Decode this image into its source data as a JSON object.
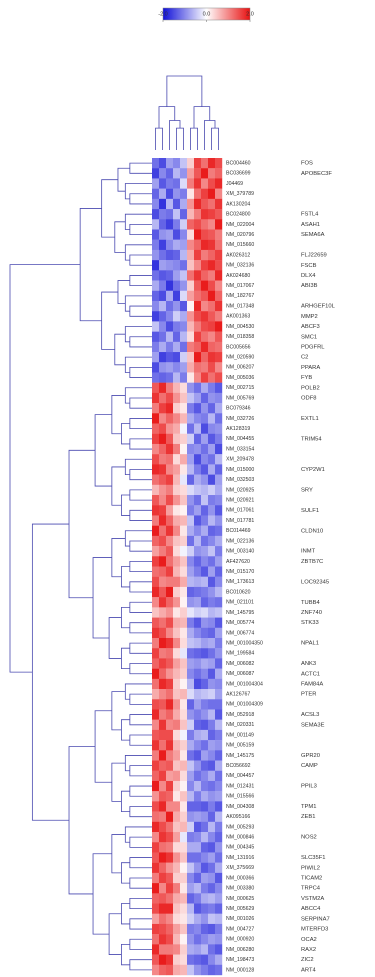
{
  "chart_data": {
    "type": "heatmap",
    "zlim": [
      -2,
      2
    ],
    "colorbar": {
      "colors": [
        "#1010d8",
        "#ffffff",
        "#e81010"
      ],
      "ticks": [
        {
          "value": -2,
          "label": "-2.0"
        },
        {
          "value": 0,
          "label": "0.0"
        },
        {
          "value": 2,
          "label": "2.0"
        }
      ]
    },
    "columns": [
      null,
      null,
      null,
      null,
      null,
      null,
      null,
      null,
      null,
      null
    ],
    "rows": [
      "BC004460",
      "BC036699",
      "J04469",
      "XM_379789",
      "AK130204",
      "BC024800",
      "NM_022004",
      "NM_020796",
      "NM_015660",
      "AK026312",
      "NM_032136",
      "AK024680",
      "NM_017067",
      "NM_182767",
      "NM_017348",
      "AK001363",
      "NM_004530",
      "NM_018358",
      "BC005656",
      "NM_020590",
      "NM_006207",
      "NM_005036",
      "NM_002715",
      "NM_005769",
      "BC079346",
      "NM_032726",
      "AK128319",
      "NM_004455",
      "NM_033154",
      "XM_209478",
      "NM_015000",
      "NM_032503",
      "NM_020925",
      "NM_020921",
      "NM_017061",
      "NM_017781",
      "BC014469",
      "NM_022136",
      "NM_003140",
      "AF427620",
      "NM_015170",
      "NM_173613",
      "BC010620",
      "NM_021101",
      "NM_145795",
      "NM_005774",
      "NM_006774",
      "NM_001004350",
      "NM_199584",
      "NM_006082",
      "NM_006087",
      "NM_001004304",
      "AK126767",
      "NM_001004309",
      "NM_052918",
      "NM_020331",
      "NM_001149",
      "NM_005159",
      "NM_145175",
      "BC056692",
      "NM_004457",
      "NM_012431",
      "NM_015566",
      "NM_004308",
      "AK095166",
      "NM_005293",
      "NM_000846",
      "NM_004345",
      "NM_131916",
      "XM_375669",
      "NM_000366",
      "NM_003380",
      "NM_000625",
      "NM_005629",
      "NM_001026",
      "NM_004727",
      "NM_000920",
      "NM_006280",
      "NM_198473",
      "NM_000128"
    ],
    "row_symbols": [
      "FOS",
      "APOBEC3F",
      null,
      null,
      null,
      "FSTL4",
      "ASAH1",
      "SEMA6A",
      null,
      "FLJ22659",
      "FSCB",
      "DLX4",
      "ABI3B",
      null,
      "ARHGEF10L",
      "MMP2",
      "ABCF3",
      "SMC1",
      "PDGFRL",
      "C2",
      "PPARA",
      "FYB",
      "POLB2",
      "ODF8",
      null,
      "EXTL1",
      null,
      "TRIM54",
      null,
      null,
      "CYP2W1",
      null,
      "SRY",
      null,
      "SULF1",
      null,
      "CLDN10",
      null,
      "INMT",
      "ZBTB7C",
      null,
      "LOC92345",
      null,
      "TUBB4",
      "ZNF740",
      "STK33",
      null,
      "NPAL1",
      null,
      "ANK3",
      "ACTC1",
      "FAM84A",
      "PTER",
      null,
      "ACSL3",
      "SEMA3E",
      null,
      null,
      "GPR20",
      "CAMP",
      null,
      "PPIL3",
      null,
      "TPM1",
      "ZEB1",
      null,
      "NOS2",
      null,
      "SLC35F1",
      "PIWIL2",
      "TICAM2",
      "TRPC4",
      "VSTM2A",
      "ABCC4",
      "SERPINA7",
      "MTERFD3",
      "OCA2",
      "RAX2",
      "ZIC2",
      "ART4"
    ],
    "values": [
      [
        -1.2,
        -1.5,
        -0.8,
        -1.0,
        -0.5,
        0.4,
        1.6,
        1.2,
        1.8,
        1.5
      ],
      [
        -1.6,
        -1.0,
        -1.3,
        -0.6,
        -0.9,
        0.8,
        1.4,
        1.9,
        1.1,
        1.3
      ],
      [
        -0.8,
        -1.4,
        -1.1,
        -1.2,
        -0.3,
        1.1,
        1.7,
        1.0,
        1.5,
        1.8
      ],
      [
        -1.3,
        -0.7,
        -1.5,
        -0.9,
        -1.1,
        0.2,
        1.2,
        1.6,
        1.9,
        1.0
      ],
      [
        -1.0,
        -1.7,
        -0.6,
        -1.4,
        -0.7,
        0.9,
        1.8,
        1.4,
        1.2,
        1.7
      ],
      [
        -1.5,
        -1.1,
        -1.2,
        -0.5,
        -1.3,
        0.6,
        1.1,
        1.7,
        1.6,
        1.4
      ],
      [
        -0.6,
        -1.3,
        -1.6,
        -1.1,
        -0.4,
        1.3,
        1.5,
        1.2,
        1.0,
        1.9
      ],
      [
        -1.4,
        -0.9,
        -0.8,
        -1.5,
        -1.0,
        0.3,
        1.9,
        1.5,
        1.4,
        1.1
      ],
      [
        -1.1,
        -1.6,
        -1.0,
        -0.7,
        -0.8,
        1.0,
        1.3,
        1.8,
        1.7,
        1.2
      ],
      [
        -0.9,
        -1.2,
        -1.4,
        -1.3,
        -0.6,
        0.7,
        1.6,
        1.1,
        1.3,
        1.6
      ],
      [
        -1.7,
        -0.8,
        -0.9,
        -1.0,
        -1.2,
        0.5,
        1.0,
        1.6,
        1.8,
        1.5
      ],
      [
        -1.2,
        -1.4,
        -1.3,
        -0.8,
        -0.5,
        1.2,
        1.7,
        1.3,
        1.1,
        1.8
      ],
      [
        -0.7,
        -1.1,
        -1.7,
        -1.2,
        -0.9,
        0.4,
        1.4,
        1.9,
        1.5,
        1.0
      ],
      [
        -1.3,
        -1.5,
        -0.7,
        -1.6,
        -0.3,
        0.8,
        1.2,
        1.4,
        1.9,
        1.3
      ],
      [
        -1.0,
        -0.6,
        -1.2,
        -0.9,
        -1.4,
        0.1,
        1.8,
        1.0,
        1.2,
        1.7
      ],
      [
        -1.6,
        -1.3,
        -1.0,
        -0.4,
        -0.7,
        0.9,
        1.5,
        1.7,
        1.4,
        1.1
      ],
      [
        -0.5,
        -1.0,
        -1.5,
        -1.1,
        -1.0,
        0.6,
        1.1,
        1.5,
        1.6,
        1.9
      ],
      [
        -1.4,
        -1.2,
        -0.6,
        -1.3,
        -0.6,
        0.3,
        1.6,
        1.2,
        1.0,
        1.4
      ],
      [
        -1.1,
        -0.7,
        -1.1,
        -0.7,
        -1.2,
        1.1,
        1.3,
        1.8,
        1.3,
        1.2
      ],
      [
        -0.8,
        -1.6,
        -1.4,
        -1.5,
        -0.4,
        0.5,
        1.9,
        1.3,
        1.7,
        1.6
      ],
      [
        -1.5,
        -0.9,
        -0.8,
        -1.0,
        -0.8,
        0.7,
        1.2,
        1.1,
        1.5,
        1.0
      ],
      [
        -1.2,
        -1.3,
        -1.2,
        -0.6,
        -1.1,
        0.2,
        1.0,
        1.6,
        1.2,
        1.5
      ],
      [
        1.4,
        1.8,
        1.1,
        0.6,
        0.3,
        -0.9,
        -1.2,
        -0.7,
        -1.1,
        -1.4
      ],
      [
        1.7,
        1.2,
        1.5,
        0.9,
        0.5,
        -0.5,
        -0.8,
        -1.3,
        -0.9,
        -1.0
      ],
      [
        1.1,
        1.6,
        1.8,
        0.4,
        0.2,
        -1.1,
        -1.4,
        -0.9,
        -1.3,
        -0.7
      ],
      [
        1.9,
        1.0,
        1.3,
        1.0,
        0.6,
        -0.7,
        -1.0,
        -1.1,
        -0.6,
        -1.2
      ],
      [
        1.3,
        1.5,
        0.9,
        0.7,
        -0.1,
        -1.2,
        -0.6,
        -1.5,
        -1.0,
        -0.9
      ],
      [
        1.6,
        1.9,
        1.4,
        0.5,
        0.4,
        -0.4,
        -1.3,
        -0.8,
        -1.4,
        -1.1
      ],
      [
        1.0,
        1.3,
        1.7,
        1.1,
        0.1,
        -1.0,
        -0.9,
        -1.2,
        -0.8,
        -1.5
      ],
      [
        1.5,
        1.1,
        1.2,
        0.3,
        0.7,
        -0.8,
        -1.5,
        -1.0,
        -1.2,
        -0.6
      ],
      [
        1.8,
        1.7,
        1.0,
        0.8,
        0.2,
        -0.6,
        -1.1,
        -1.4,
        -0.7,
        -1.3
      ],
      [
        1.2,
        1.4,
        1.6,
        0.6,
        -0.2,
        -1.3,
        -0.7,
        -0.9,
        -1.5,
        -0.8
      ],
      [
        0.6,
        0.9,
        1.1,
        0.4,
        0.3,
        -0.3,
        -0.5,
        -0.6,
        -0.4,
        -0.7
      ],
      [
        1.4,
        1.0,
        1.5,
        0.9,
        0.5,
        -0.9,
        -1.2,
        -0.5,
        -1.1,
        -1.0
      ],
      [
        1.7,
        1.6,
        0.8,
        0.2,
        0.1,
        -1.1,
        -0.8,
        -1.3,
        -0.9,
        -1.4
      ],
      [
        1.1,
        1.8,
        1.3,
        0.7,
        0.6,
        -0.5,
        -1.4,
        -1.1,
        -0.6,
        -0.9
      ],
      [
        1.9,
        1.2,
        1.7,
        1.0,
        0.2,
        -0.7,
        -1.0,
        -0.7,
        -1.3,
        -1.2
      ],
      [
        1.3,
        1.5,
        1.0,
        0.5,
        0.4,
        -1.2,
        -0.6,
        -1.2,
        -1.0,
        -0.7
      ],
      [
        0.8,
        1.1,
        1.4,
        0.3,
        -0.1,
        -0.4,
        -0.9,
        -0.8,
        -0.5,
        -1.1
      ],
      [
        1.6,
        1.9,
        1.2,
        0.8,
        0.5,
        -1.0,
        -1.3,
        -1.0,
        -1.2,
        -0.8
      ],
      [
        1.2,
        1.3,
        1.6,
        0.6,
        0.3,
        -0.8,
        -1.1,
        -1.4,
        -0.8,
        -1.3
      ],
      [
        1.5,
        1.0,
        1.1,
        1.1,
        0.7,
        -0.6,
        -0.7,
        -0.6,
        -1.4,
        -1.0
      ],
      [
        1.8,
        1.4,
        1.9,
        0.4,
        0.2,
        -1.3,
        -1.2,
        -1.1,
        -0.9,
        -0.6
      ],
      [
        1.0,
        1.7,
        1.3,
        0.9,
        0.1,
        -0.9,
        -0.8,
        -1.3,
        -1.1,
        -1.2
      ],
      [
        0.5,
        0.7,
        0.9,
        0.2,
        0.4,
        -0.2,
        -0.4,
        -0.3,
        -0.6,
        -0.5
      ],
      [
        1.4,
        1.2,
        1.5,
        0.7,
        0.6,
        -1.1,
        -1.4,
        -0.9,
        -1.0,
        -1.4
      ],
      [
        1.7,
        1.5,
        1.0,
        0.5,
        0.2,
        -0.7,
        -1.0,
        -1.2,
        -1.3,
        -0.8
      ],
      [
        1.1,
        1.9,
        1.7,
        1.0,
        0.3,
        -0.5,
        -0.6,
        -0.8,
        -0.7,
        -1.1
      ],
      [
        1.6,
        1.1,
        1.2,
        0.3,
        -0.2,
        -1.2,
        -1.3,
        -1.4,
        -1.2,
        -0.9
      ],
      [
        1.3,
        1.6,
        1.4,
        0.8,
        0.5,
        -0.8,
        -0.9,
        -0.7,
        -0.8,
        -1.3
      ],
      [
        1.9,
        1.3,
        0.9,
        0.6,
        0.4,
        -1.0,
        -1.2,
        -1.0,
        -1.4,
        -0.7
      ],
      [
        1.2,
        1.8,
        1.6,
        0.4,
        0.1,
        -0.6,
        -1.5,
        -1.3,
        -0.9,
        -1.0
      ],
      [
        0.7,
        1.0,
        1.2,
        0.5,
        0.6,
        -0.3,
        -0.6,
        -0.5,
        -0.4,
        -0.8
      ],
      [
        1.5,
        1.4,
        1.8,
        0.9,
        0.2,
        -1.3,
        -0.8,
        -1.1,
        -1.2,
        -1.2
      ],
      [
        1.8,
        1.1,
        1.3,
        0.7,
        0.3,
        -0.9,
        -1.1,
        -0.9,
        -0.6,
        -1.4
      ],
      [
        1.0,
        1.7,
        1.0,
        1.1,
        0.5,
        -0.4,
        -1.3,
        -1.4,
        -1.1,
        -0.6
      ],
      [
        1.4,
        1.5,
        1.5,
        0.3,
        -0.1,
        -1.1,
        -0.7,
        -0.6,
        -1.3,
        -1.1
      ],
      [
        1.7,
        1.2,
        1.7,
        0.6,
        0.4,
        -0.7,
        -1.0,
        -1.2,
        -0.8,
        -0.9
      ],
      [
        1.1,
        1.9,
        1.1,
        0.8,
        0.2,
        -1.2,
        -1.4,
        -0.8,
        -1.0,
        -1.3
      ],
      [
        1.6,
        1.3,
        1.4,
        0.5,
        0.6,
        -0.5,
        -0.9,
        -1.3,
        -1.4,
        -0.7
      ],
      [
        1.3,
        1.6,
        0.8,
        0.9,
        0.3,
        -0.8,
        -1.2,
        -1.0,
        -0.7,
        -1.2
      ],
      [
        1.9,
        1.0,
        1.6,
        0.4,
        0.1,
        -1.0,
        -0.6,
        -1.1,
        -1.2,
        -1.0
      ],
      [
        0.9,
        1.4,
        1.3,
        0.2,
        0.5,
        -0.6,
        -1.1,
        -0.7,
        -0.9,
        -0.8
      ],
      [
        1.5,
        1.8,
        1.0,
        1.0,
        0.2,
        -1.3,
        -1.3,
        -1.4,
        -1.1,
        -1.4
      ],
      [
        1.2,
        1.1,
        1.9,
        0.7,
        0.4,
        -0.9,
        -0.8,
        -0.9,
        -1.3,
        -0.6
      ],
      [
        1.8,
        1.5,
        1.2,
        0.5,
        0.6,
        -0.4,
        -1.4,
        -1.2,
        -0.6,
        -1.1
      ],
      [
        1.0,
        1.7,
        1.5,
        0.8,
        -0.2,
        -1.1,
        -1.0,
        -0.6,
        -1.0,
        -1.3
      ],
      [
        1.6,
        1.2,
        1.1,
        0.3,
        0.3,
        -0.7,
        -0.7,
        -1.3,
        -1.4,
        -0.9
      ],
      [
        1.4,
        1.9,
        1.7,
        0.9,
        0.5,
        -1.2,
        -1.2,
        -1.0,
        -0.8,
        -1.2
      ],
      [
        1.7,
        1.3,
        0.9,
        0.6,
        0.1,
        -0.5,
        -0.9,
        -1.4,
        -1.2,
        -0.7
      ],
      [
        1.1,
        1.6,
        1.4,
        0.4,
        0.4,
        -1.0,
        -1.3,
        -0.8,
        -0.9,
        -1.4
      ],
      [
        1.9,
        1.0,
        1.6,
        1.1,
        0.2,
        -0.8,
        -0.6,
        -1.1,
        -1.3,
        -1.0
      ],
      [
        1.3,
        1.4,
        1.2,
        0.7,
        0.6,
        -1.3,
        -1.1,
        -0.7,
        -0.6,
        -0.8
      ],
      [
        1.5,
        1.8,
        1.8,
        0.5,
        0.3,
        -0.6,
        -1.4,
        -1.2,
        -1.1,
        -1.3
      ],
      [
        0.8,
        1.2,
        1.0,
        0.3,
        0.2,
        -0.4,
        -0.7,
        -0.9,
        -0.5,
        -0.6
      ],
      [
        1.6,
        1.5,
        1.3,
        0.8,
        0.5,
        -1.1,
        -1.0,
        -1.3,
        -1.4,
        -1.1
      ],
      [
        1.2,
        1.7,
        1.5,
        0.6,
        0.1,
        -0.9,
        -1.2,
        -1.0,
        -0.8,
        -0.9
      ],
      [
        1.8,
        1.1,
        1.1,
        1.0,
        0.4,
        -0.7,
        -0.8,
        -0.6,
        -1.2,
        -1.4
      ],
      [
        1.4,
        1.9,
        1.7,
        0.4,
        0.3,
        -1.2,
        -1.3,
        -1.4,
        -1.0,
        -0.7
      ],
      [
        1.0,
        1.3,
        1.4,
        0.7,
        0.6,
        -0.5,
        -0.9,
        -1.1,
        -1.3,
        -1.2
      ]
    ]
  }
}
